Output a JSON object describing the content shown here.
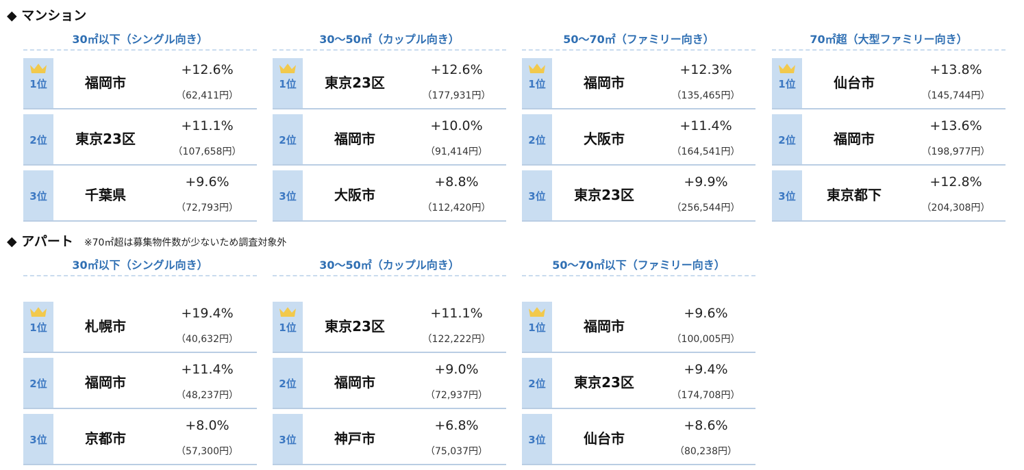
{
  "mansion": {
    "title": "◆ マンション",
    "groups": [
      {
        "category": "30㎡以下（シングル向き）",
        "rows": [
          {
            "rank": "1位",
            "city": "福岡市",
            "pct": "+12.6%",
            "price": "（62,411円）"
          },
          {
            "rank": "2位",
            "city": "東京23区",
            "pct": "+11.1%",
            "price": "（107,658円）"
          },
          {
            "rank": "3位",
            "city": "千葉県",
            "pct": "+9.6%",
            "price": "（72,793円）"
          }
        ]
      },
      {
        "category": "30～50㎡（カップル向き）",
        "rows": [
          {
            "rank": "1位",
            "city": "東京23区",
            "pct": "+12.6%",
            "price": "（177,931円）"
          },
          {
            "rank": "2位",
            "city": "福岡市",
            "pct": "+10.0%",
            "price": "（91,414円）"
          },
          {
            "rank": "3位",
            "city": "大阪市",
            "pct": "+8.8%",
            "price": "（112,420円）"
          }
        ]
      },
      {
        "category": "50～70㎡（ファミリー向き）",
        "rows": [
          {
            "rank": "1位",
            "city": "福岡市",
            "pct": "+12.3%",
            "price": "（135,465円）"
          },
          {
            "rank": "2位",
            "city": "大阪市",
            "pct": "+11.4%",
            "price": "（164,541円）"
          },
          {
            "rank": "3位",
            "city": "東京23区",
            "pct": "+9.9%",
            "price": "（256,544円）"
          }
        ]
      },
      {
        "category": "70㎡超（大型ファミリー向き）",
        "rows": [
          {
            "rank": "1位",
            "city": "仙台市",
            "pct": "+13.8%",
            "price": "（145,744円）"
          },
          {
            "rank": "2位",
            "city": "福岡市",
            "pct": "+13.6%",
            "price": "（198,977円）"
          },
          {
            "rank": "3位",
            "city": "東京都下",
            "pct": "+12.8%",
            "price": "（204,308円）"
          }
        ]
      }
    ]
  },
  "apartment": {
    "title": "◆ アパート",
    "note": "※70㎡超は募集物件数が少ないため調査対象外",
    "groups": [
      {
        "category": "30㎡以下（シングル向き）",
        "rows": [
          {
            "rank": "1位",
            "city": "札幌市",
            "pct": "+19.4%",
            "price": "（40,632円）"
          },
          {
            "rank": "2位",
            "city": "福岡市",
            "pct": "+11.4%",
            "price": "（48,237円）"
          },
          {
            "rank": "3位",
            "city": "京都市",
            "pct": "+8.0%",
            "price": "（57,300円）"
          }
        ]
      },
      {
        "category": "30～50㎡（カップル向き）",
        "rows": [
          {
            "rank": "1位",
            "city": "東京23区",
            "pct": "+11.1%",
            "price": "（122,222円）"
          },
          {
            "rank": "2位",
            "city": "福岡市",
            "pct": "+9.0%",
            "price": "（72,937円）"
          },
          {
            "rank": "3位",
            "city": "神戸市",
            "pct": "+6.8%",
            "price": "（75,037円）"
          }
        ]
      },
      {
        "category": "50～70㎡以下（ファミリー向き）",
        "rows": [
          {
            "rank": "1位",
            "city": "福岡市",
            "pct": "+9.6%",
            "price": "（100,005円）"
          },
          {
            "rank": "2位",
            "city": "東京23区",
            "pct": "+9.4%",
            "price": "（174,708円）"
          },
          {
            "rank": "3位",
            "city": "仙台市",
            "pct": "+8.6%",
            "price": "（80,238円）"
          }
        ]
      }
    ]
  },
  "colors": {
    "rank_bg": "#c9ddf1",
    "rank_text": "#3c78c2",
    "category_text": "#2f6fb3",
    "crown": "#f2c94c"
  },
  "icons": {
    "top_rank": "crown-icon"
  }
}
